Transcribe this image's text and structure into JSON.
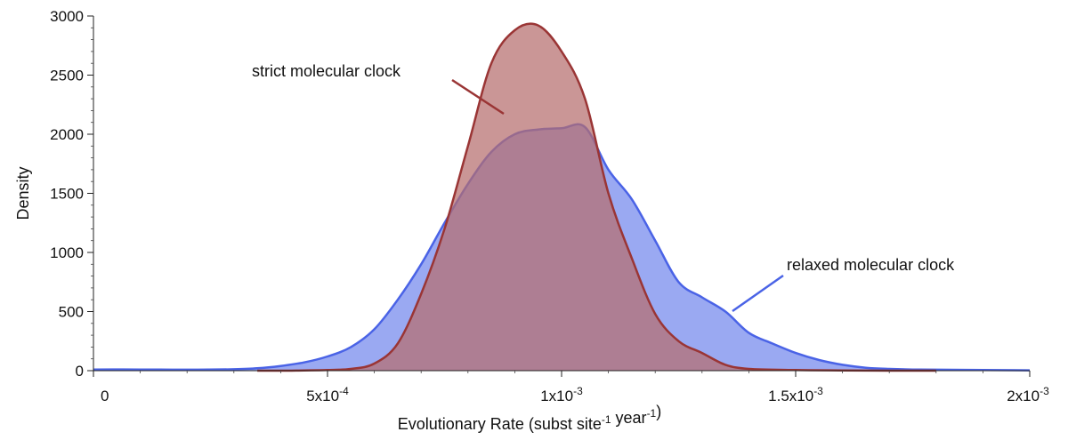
{
  "chart_data": {
    "type": "area",
    "xlabel": "Evolutionary Rate (subst site⁻¹ year⁻¹)",
    "ylabel": "Density",
    "xlim": [
      0,
      0.002
    ],
    "ylim": [
      0,
      3000
    ],
    "x_ticks": [
      {
        "value": 0,
        "label": "0"
      },
      {
        "value": 0.0005,
        "label": "5x10⁻⁴"
      },
      {
        "value": 0.001,
        "label": "1x10⁻³"
      },
      {
        "value": 0.0015,
        "label": "1.5x10⁻³"
      },
      {
        "value": 0.002,
        "label": "2x10⁻³"
      }
    ],
    "y_ticks": [
      {
        "value": 0,
        "label": "0"
      },
      {
        "value": 500,
        "label": "500"
      },
      {
        "value": 1000,
        "label": "1000"
      },
      {
        "value": 1500,
        "label": "1500"
      },
      {
        "value": 2000,
        "label": "2000"
      },
      {
        "value": 2500,
        "label": "2500"
      },
      {
        "value": 3000,
        "label": "3000"
      }
    ],
    "grid": false,
    "legend": "none",
    "series": [
      {
        "key": "relaxed",
        "color": "#4a63e6",
        "fill": "#9aa9f2",
        "x": [
          0,
          0.0001,
          0.0002,
          0.0003,
          0.00035,
          0.0004,
          0.00045,
          0.0005,
          0.00055,
          0.0006,
          0.00065,
          0.0007,
          0.00075,
          0.0008,
          0.00085,
          0.0009,
          0.00095,
          0.001,
          0.00105,
          0.0011,
          0.00115,
          0.0012,
          0.00125,
          0.0013,
          0.00135,
          0.0014,
          0.00145,
          0.0015,
          0.00155,
          0.0016,
          0.00165,
          0.0017,
          0.00175,
          0.0018,
          0.0019,
          0.002
        ],
        "y": [
          10,
          10,
          8,
          12,
          20,
          40,
          70,
          120,
          200,
          350,
          600,
          900,
          1250,
          1580,
          1850,
          2000,
          2040,
          2050,
          2060,
          1700,
          1450,
          1100,
          750,
          620,
          500,
          320,
          230,
          150,
          90,
          50,
          25,
          15,
          10,
          8,
          5,
          3
        ]
      },
      {
        "key": "strict",
        "color": "#9a3535",
        "fill": "#b56d6d",
        "x": [
          0.00035,
          0.0004,
          0.00045,
          0.0005,
          0.00055,
          0.0006,
          0.00065,
          0.0007,
          0.00075,
          0.0008,
          0.00085,
          0.0009,
          0.00095,
          0.001,
          0.00105,
          0.0011,
          0.00115,
          0.0012,
          0.00125,
          0.0013,
          0.00135,
          0.0014,
          0.0015,
          0.0016,
          0.0017,
          0.0018
        ],
        "y": [
          0,
          0,
          2,
          5,
          15,
          60,
          230,
          650,
          1200,
          1900,
          2600,
          2880,
          2920,
          2700,
          2300,
          1500,
          950,
          480,
          250,
          150,
          50,
          15,
          5,
          2,
          0,
          0
        ]
      }
    ],
    "annotations": [
      {
        "text": "strict molecular clock",
        "series": "strict"
      },
      {
        "text": "relaxed molecular clock",
        "series": "relaxed"
      }
    ]
  }
}
